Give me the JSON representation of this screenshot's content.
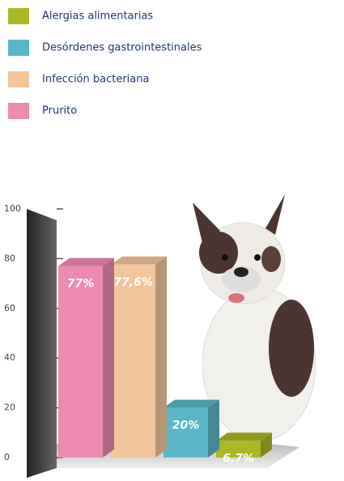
{
  "chart_data": {
    "type": "bar3d",
    "series": [
      {
        "name": "Alergias alimentarias",
        "color": "#a9b824",
        "values": [
          6.7
        ],
        "value_labels": [
          "6,7%"
        ]
      },
      {
        "name": "Desórdenes gastrointestinales",
        "color": "#5ab6c7",
        "values": [
          20
        ],
        "value_labels": [
          "20%"
        ]
      },
      {
        "name": "Infección bacteriana",
        "color": "#f3c59b",
        "values": [
          77.6
        ],
        "value_labels": [
          "77,6%"
        ]
      },
      {
        "name": "Prurito",
        "color": "#ec8ab0",
        "values": [
          77
        ],
        "value_labels": [
          "77%"
        ]
      }
    ],
    "ylim": [
      0,
      100
    ],
    "yticks": [
      0,
      20,
      40,
      60,
      80,
      100
    ]
  }
}
